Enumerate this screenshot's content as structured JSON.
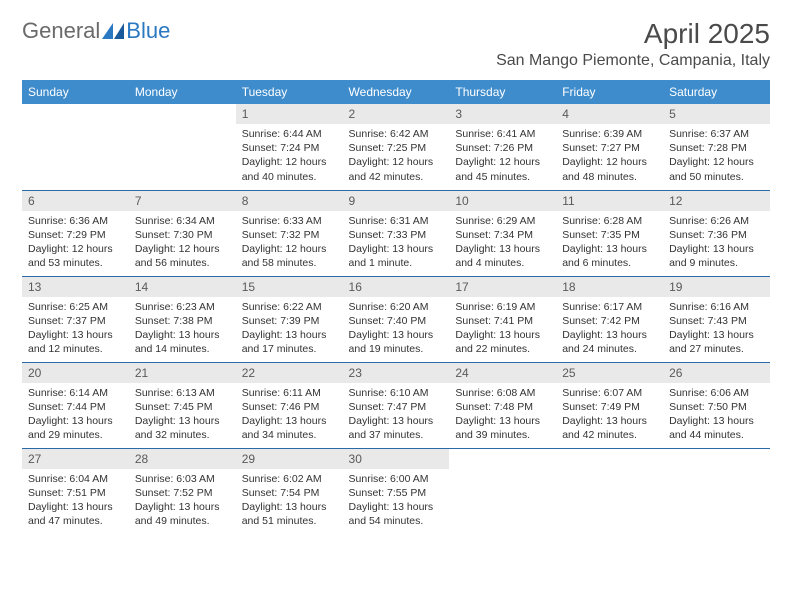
{
  "logo": {
    "text1": "General",
    "text2": "Blue"
  },
  "title": "April 2025",
  "location": "San Mango Piemonte, Campania, Italy",
  "colors": {
    "header_bg": "#3e8ccc",
    "header_text": "#ffffff",
    "daynum_bg": "#e9e9e9",
    "week_divider": "#2a6aa8",
    "body_text": "#333333",
    "title_text": "#4a4a4a"
  },
  "day_headers": [
    "Sunday",
    "Monday",
    "Tuesday",
    "Wednesday",
    "Thursday",
    "Friday",
    "Saturday"
  ],
  "weeks": [
    [
      {
        "n": "",
        "sr": "",
        "ss": "",
        "dl": ""
      },
      {
        "n": "",
        "sr": "",
        "ss": "",
        "dl": ""
      },
      {
        "n": "1",
        "sr": "Sunrise: 6:44 AM",
        "ss": "Sunset: 7:24 PM",
        "dl": "Daylight: 12 hours and 40 minutes."
      },
      {
        "n": "2",
        "sr": "Sunrise: 6:42 AM",
        "ss": "Sunset: 7:25 PM",
        "dl": "Daylight: 12 hours and 42 minutes."
      },
      {
        "n": "3",
        "sr": "Sunrise: 6:41 AM",
        "ss": "Sunset: 7:26 PM",
        "dl": "Daylight: 12 hours and 45 minutes."
      },
      {
        "n": "4",
        "sr": "Sunrise: 6:39 AM",
        "ss": "Sunset: 7:27 PM",
        "dl": "Daylight: 12 hours and 48 minutes."
      },
      {
        "n": "5",
        "sr": "Sunrise: 6:37 AM",
        "ss": "Sunset: 7:28 PM",
        "dl": "Daylight: 12 hours and 50 minutes."
      }
    ],
    [
      {
        "n": "6",
        "sr": "Sunrise: 6:36 AM",
        "ss": "Sunset: 7:29 PM",
        "dl": "Daylight: 12 hours and 53 minutes."
      },
      {
        "n": "7",
        "sr": "Sunrise: 6:34 AM",
        "ss": "Sunset: 7:30 PM",
        "dl": "Daylight: 12 hours and 56 minutes."
      },
      {
        "n": "8",
        "sr": "Sunrise: 6:33 AM",
        "ss": "Sunset: 7:32 PM",
        "dl": "Daylight: 12 hours and 58 minutes."
      },
      {
        "n": "9",
        "sr": "Sunrise: 6:31 AM",
        "ss": "Sunset: 7:33 PM",
        "dl": "Daylight: 13 hours and 1 minute."
      },
      {
        "n": "10",
        "sr": "Sunrise: 6:29 AM",
        "ss": "Sunset: 7:34 PM",
        "dl": "Daylight: 13 hours and 4 minutes."
      },
      {
        "n": "11",
        "sr": "Sunrise: 6:28 AM",
        "ss": "Sunset: 7:35 PM",
        "dl": "Daylight: 13 hours and 6 minutes."
      },
      {
        "n": "12",
        "sr": "Sunrise: 6:26 AM",
        "ss": "Sunset: 7:36 PM",
        "dl": "Daylight: 13 hours and 9 minutes."
      }
    ],
    [
      {
        "n": "13",
        "sr": "Sunrise: 6:25 AM",
        "ss": "Sunset: 7:37 PM",
        "dl": "Daylight: 13 hours and 12 minutes."
      },
      {
        "n": "14",
        "sr": "Sunrise: 6:23 AM",
        "ss": "Sunset: 7:38 PM",
        "dl": "Daylight: 13 hours and 14 minutes."
      },
      {
        "n": "15",
        "sr": "Sunrise: 6:22 AM",
        "ss": "Sunset: 7:39 PM",
        "dl": "Daylight: 13 hours and 17 minutes."
      },
      {
        "n": "16",
        "sr": "Sunrise: 6:20 AM",
        "ss": "Sunset: 7:40 PM",
        "dl": "Daylight: 13 hours and 19 minutes."
      },
      {
        "n": "17",
        "sr": "Sunrise: 6:19 AM",
        "ss": "Sunset: 7:41 PM",
        "dl": "Daylight: 13 hours and 22 minutes."
      },
      {
        "n": "18",
        "sr": "Sunrise: 6:17 AM",
        "ss": "Sunset: 7:42 PM",
        "dl": "Daylight: 13 hours and 24 minutes."
      },
      {
        "n": "19",
        "sr": "Sunrise: 6:16 AM",
        "ss": "Sunset: 7:43 PM",
        "dl": "Daylight: 13 hours and 27 minutes."
      }
    ],
    [
      {
        "n": "20",
        "sr": "Sunrise: 6:14 AM",
        "ss": "Sunset: 7:44 PM",
        "dl": "Daylight: 13 hours and 29 minutes."
      },
      {
        "n": "21",
        "sr": "Sunrise: 6:13 AM",
        "ss": "Sunset: 7:45 PM",
        "dl": "Daylight: 13 hours and 32 minutes."
      },
      {
        "n": "22",
        "sr": "Sunrise: 6:11 AM",
        "ss": "Sunset: 7:46 PM",
        "dl": "Daylight: 13 hours and 34 minutes."
      },
      {
        "n": "23",
        "sr": "Sunrise: 6:10 AM",
        "ss": "Sunset: 7:47 PM",
        "dl": "Daylight: 13 hours and 37 minutes."
      },
      {
        "n": "24",
        "sr": "Sunrise: 6:08 AM",
        "ss": "Sunset: 7:48 PM",
        "dl": "Daylight: 13 hours and 39 minutes."
      },
      {
        "n": "25",
        "sr": "Sunrise: 6:07 AM",
        "ss": "Sunset: 7:49 PM",
        "dl": "Daylight: 13 hours and 42 minutes."
      },
      {
        "n": "26",
        "sr": "Sunrise: 6:06 AM",
        "ss": "Sunset: 7:50 PM",
        "dl": "Daylight: 13 hours and 44 minutes."
      }
    ],
    [
      {
        "n": "27",
        "sr": "Sunrise: 6:04 AM",
        "ss": "Sunset: 7:51 PM",
        "dl": "Daylight: 13 hours and 47 minutes."
      },
      {
        "n": "28",
        "sr": "Sunrise: 6:03 AM",
        "ss": "Sunset: 7:52 PM",
        "dl": "Daylight: 13 hours and 49 minutes."
      },
      {
        "n": "29",
        "sr": "Sunrise: 6:02 AM",
        "ss": "Sunset: 7:54 PM",
        "dl": "Daylight: 13 hours and 51 minutes."
      },
      {
        "n": "30",
        "sr": "Sunrise: 6:00 AM",
        "ss": "Sunset: 7:55 PM",
        "dl": "Daylight: 13 hours and 54 minutes."
      },
      {
        "n": "",
        "sr": "",
        "ss": "",
        "dl": ""
      },
      {
        "n": "",
        "sr": "",
        "ss": "",
        "dl": ""
      },
      {
        "n": "",
        "sr": "",
        "ss": "",
        "dl": ""
      }
    ]
  ]
}
